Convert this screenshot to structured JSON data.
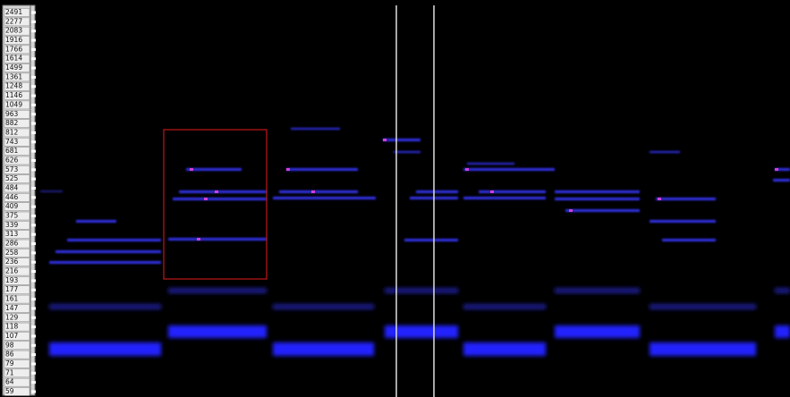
{
  "ruler": {
    "frequency_labels": [
      "2491",
      "2277",
      "2083",
      "1916",
      "1766",
      "1614",
      "1499",
      "1361",
      "1248",
      "1146",
      "1049",
      "963",
      "882",
      "812",
      "743",
      "681",
      "626",
      "573",
      "525",
      "484",
      "446",
      "409",
      "375",
      "339",
      "313",
      "286",
      "258",
      "236",
      "216",
      "193",
      "177",
      "161",
      "147",
      "129",
      "118",
      "107",
      "98",
      "86",
      "79",
      "71",
      "64",
      "59"
    ]
  }
}
